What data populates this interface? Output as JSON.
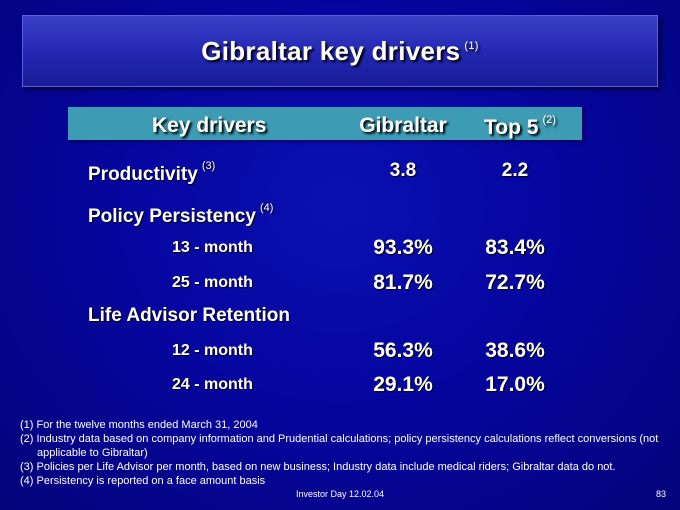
{
  "header": {
    "title": "Gibraltar key drivers",
    "title_note": "(1)"
  },
  "table": {
    "headers": [
      "Key drivers",
      "Gibraltar",
      "Top 5"
    ],
    "header_note": "(2)",
    "rows": [
      {
        "label": "Productivity",
        "note": "(3)",
        "gibraltar": "3.8",
        "top5": "2.2"
      },
      {
        "label": "Policy Persistency",
        "note": "(4)",
        "items": [
          {
            "label": "13 - month",
            "gibraltar": "93.3%",
            "top5": "83.4%"
          },
          {
            "label": "25 - month",
            "gibraltar": "81.7%",
            "top5": "72.7%"
          }
        ]
      },
      {
        "label": "Life Advisor Retention",
        "items": [
          {
            "label": "12 - month",
            "gibraltar": "56.3%",
            "top5": "38.6%"
          },
          {
            "label": "24 - month",
            "gibraltar": "29.1%",
            "top5": "17.0%"
          }
        ]
      }
    ]
  },
  "footnotes": [
    "(1) For the twelve months ended  March 31, 2004",
    "(2) Industry data based on company information and Prudential calculations; policy persistency calculations reflect conversions (not applicable to Gibraltar)",
    "(3) Policies per Life Advisor per month, based on new business; Industry data include medical riders; Gibraltar data do not.",
    "(4) Persistency is reported on a face amount basis"
  ],
  "footer": {
    "event": "Investor Day 12.02.04",
    "page": "83"
  }
}
